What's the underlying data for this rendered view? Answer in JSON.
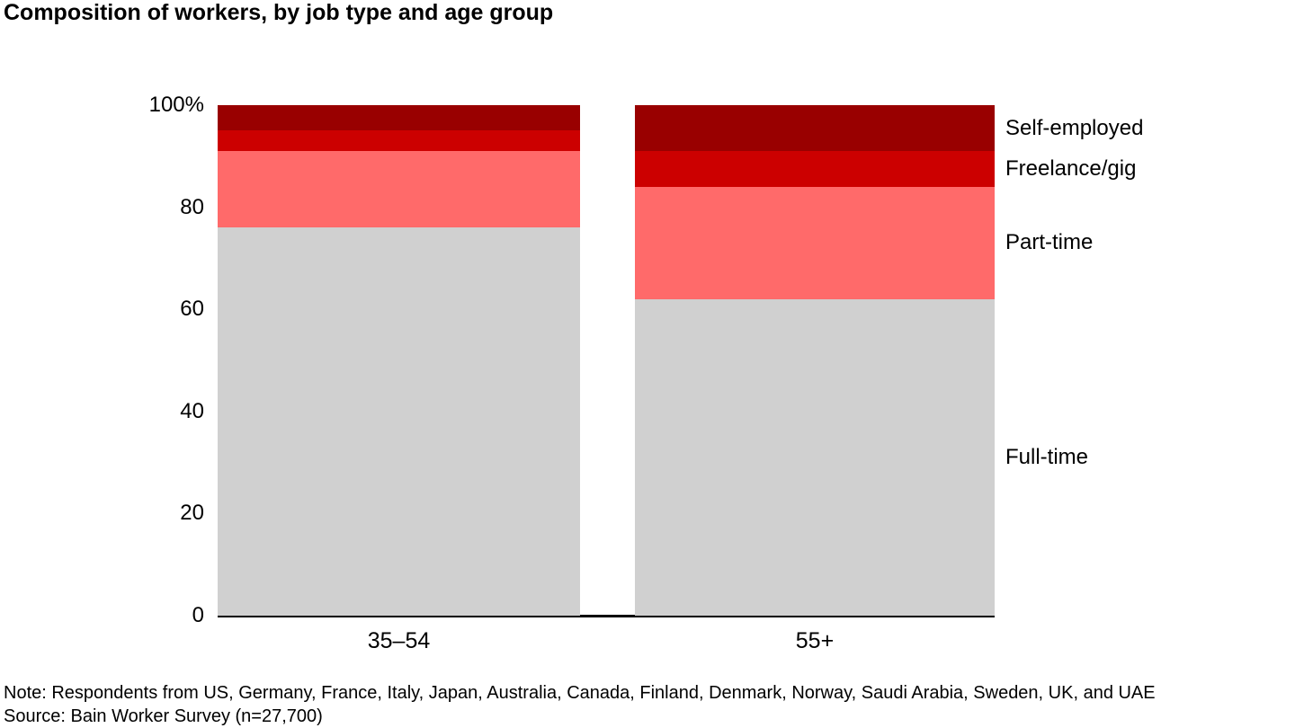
{
  "page": {
    "title": "Composition of workers, by job type and age group"
  },
  "footnotes": {
    "note": "Note: Respondents from US, Germany, France, Italy, Japan, Australia, Canada, Finland, Denmark, Norway, Saudi Arabia, Sweden, UK, and UAE",
    "source": "Source: Bain Worker Survey (n=27,700)"
  },
  "chart_data": {
    "type": "bar",
    "stacked": true,
    "percent_scale": true,
    "title": "Composition of workers, by job type and age group",
    "categories": [
      "35–54",
      "55+"
    ],
    "series": [
      {
        "name": "Full-time",
        "color": "#d0d0d0",
        "values": [
          76,
          62
        ]
      },
      {
        "name": "Part-time",
        "color": "#ff6a6a",
        "values": [
          15,
          22
        ]
      },
      {
        "name": "Freelance/gig",
        "color": "#cc0000",
        "values": [
          4,
          7
        ]
      },
      {
        "name": "Self-employed",
        "color": "#990000",
        "values": [
          5,
          9
        ]
      }
    ],
    "xlabel": "",
    "ylabel": "",
    "ylim": [
      0,
      100
    ],
    "yticks": [
      {
        "label": "100%",
        "value": 100
      },
      {
        "label": "80",
        "value": 80
      },
      {
        "label": "60",
        "value": 60
      },
      {
        "label": "40",
        "value": 40
      },
      {
        "label": "20",
        "value": 20
      },
      {
        "label": "0",
        "value": 0
      }
    ],
    "grid": false,
    "legend_position": "right, labels aligned to segments of last bar",
    "axis_color": "#000000"
  }
}
